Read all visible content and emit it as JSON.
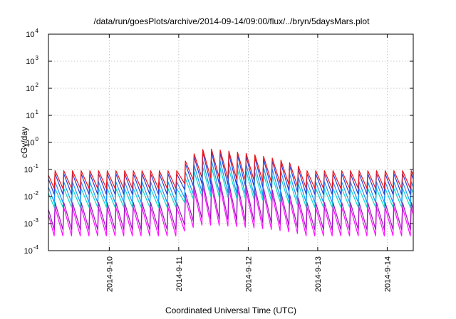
{
  "chart_data": {
    "type": "line",
    "title": "/data/run/goesPlots/archive/2014-09-14/09:00/flux/../bryn/5daysMars.plot",
    "xlabel": "Coordinated Universal Time (UTC)",
    "ylabel": "cGy/day",
    "yscale": "log",
    "ylim": [
      0.0001,
      10000
    ],
    "xlim": [
      "2014-09-09 03:00",
      "2014-09-14 09:00"
    ],
    "grid": true,
    "legend": "none",
    "x_ticks": [
      "2014-9-10",
      "2014-9-11",
      "2014-9-12",
      "2014-9-13",
      "2014-9-14"
    ],
    "y_ticks": [
      {
        "value": 0.0001,
        "base": "10",
        "exp": "-4"
      },
      {
        "value": 0.001,
        "base": "10",
        "exp": "-3"
      },
      {
        "value": 0.01,
        "base": "10",
        "exp": "-2"
      },
      {
        "value": 0.1,
        "base": "10",
        "exp": "-1"
      },
      {
        "value": 1,
        "base": "10",
        "exp": "0"
      },
      {
        "value": 10,
        "base": "10",
        "exp": "1"
      },
      {
        "value": 100,
        "base": "10",
        "exp": "2"
      },
      {
        "value": 1000,
        "base": "10",
        "exp": "3"
      },
      {
        "value": 10000,
        "base": "10",
        "exp": "4"
      }
    ],
    "description_pattern": {
      "period_hours": 3,
      "quiet_period_peaks": {
        "red": 0.09,
        "blue": 0.07,
        "light_blue": 0.035,
        "cyan": 0.02,
        "purple": 0.006,
        "magenta": 0.004
      },
      "quiet_period_troughs": {
        "red": 0.02,
        "blue": 0.012,
        "light_blue": 0.006,
        "cyan": 0.004,
        "purple": 0.0006,
        "magenta": 0.00035
      },
      "enhanced_interval": [
        "2014-09-11",
        "2014-09-12 20:00"
      ],
      "enhanced_peak_max": 0.6
    },
    "series": [
      {
        "color": "#e8141c"
      },
      {
        "color": "#2a3fd0"
      },
      {
        "color": "#1e90ff"
      },
      {
        "color": "#10d8c8"
      },
      {
        "color": "#a010c0"
      },
      {
        "color": "#ff10ff"
      }
    ]
  }
}
